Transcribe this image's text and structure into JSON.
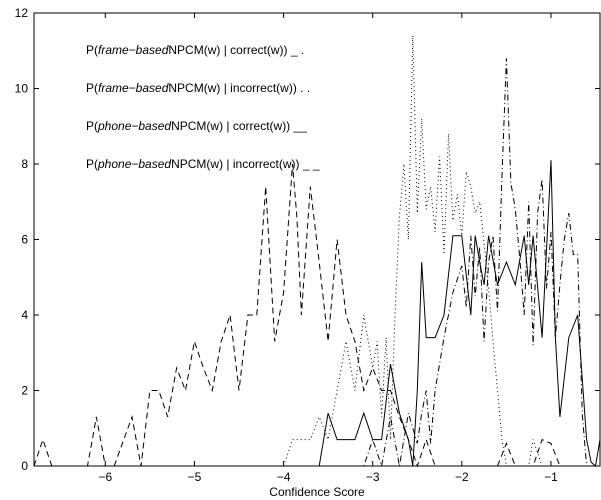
{
  "chart_data": {
    "type": "line",
    "title": "",
    "xlabel": "Confidence Score",
    "ylabel": "",
    "xlim": [
      -6.8,
      -0.45
    ],
    "ylim": [
      0,
      12
    ],
    "x_ticks": [
      -6,
      -5,
      -4,
      -3,
      -2,
      -1
    ],
    "y_ticks": [
      0,
      2,
      4,
      6,
      8,
      10,
      12
    ],
    "grid": false,
    "legend": {
      "placement": "top-left",
      "entries": [
        {
          "prefix": "P(",
          "italic": "frame−based",
          "suffix": "NPCM(w) | correct(w)) _ ."
        },
        {
          "prefix": "P(",
          "italic": "frame−based",
          "suffix": "NPCM(w) | incorrect(w)) . ."
        },
        {
          "prefix": "P(",
          "italic": "phone−based",
          "suffix": "NPCM(w) | correct(w)) __"
        },
        {
          "prefix": "P(",
          "italic": "phone−based",
          "suffix": "NPCM(w) | incorrect(w)) _ _"
        }
      ]
    },
    "series": [
      {
        "style": "dashdot",
        "x": [
          -3.2,
          -3.1,
          -3.0,
          -2.9,
          -2.8,
          -2.7,
          -2.6,
          -2.5,
          -2.45,
          -2.4,
          -2.35,
          -2.3,
          -2.2,
          -2.1,
          -2.0,
          -1.95,
          -1.9,
          -1.85,
          -1.8,
          -1.75,
          -1.7,
          -1.65,
          -1.6,
          -1.55,
          -1.5,
          -1.45,
          -1.4,
          -1.35,
          -1.3,
          -1.25,
          -1.2,
          -1.15,
          -1.1,
          -1.05,
          -1.0,
          -0.95,
          -0.9,
          -0.85,
          -0.8,
          -0.75,
          -0.7,
          -0.65,
          -0.6,
          -0.55
        ],
        "values": [
          0,
          0,
          0.7,
          0,
          1.3,
          0,
          1.4,
          0.6,
          1.4,
          2.0,
          0.6,
          2.0,
          3.4,
          4.6,
          5.3,
          4.2,
          6.1,
          4.5,
          5.8,
          3.3,
          5.4,
          6.1,
          4.1,
          7.7,
          10.8,
          7.5,
          6.8,
          5.5,
          4.0,
          7.0,
          3.2,
          6.7,
          7.6,
          4.7,
          6.2,
          3.4,
          4.8,
          6.0,
          6.7,
          5.6,
          5.6,
          1.4,
          0,
          0
        ]
      },
      {
        "style": "dotted",
        "x": [
          -4.0,
          -3.9,
          -3.8,
          -3.7,
          -3.6,
          -3.5,
          -3.4,
          -3.3,
          -3.2,
          -3.1,
          -3.0,
          -2.95,
          -2.9,
          -2.85,
          -2.8,
          -2.75,
          -2.7,
          -2.65,
          -2.6,
          -2.55,
          -2.5,
          -2.45,
          -2.4,
          -2.35,
          -2.3,
          -2.25,
          -2.2,
          -2.15,
          -2.1,
          -2.05,
          -2.0,
          -1.95,
          -1.9,
          -1.85,
          -1.8,
          -1.75,
          -1.7,
          -1.65,
          -1.6,
          -1.55,
          -1.5,
          -1.45,
          -1.4,
          -1.35,
          -1.3,
          -1.25,
          -1.2,
          -1.1,
          -1.0,
          -0.9,
          -0.8,
          -0.75,
          -0.7
        ],
        "values": [
          0,
          0.7,
          0.7,
          0.7,
          1.3,
          0.7,
          2.0,
          3.3,
          2.0,
          4.0,
          2.6,
          3.3,
          1.3,
          3.4,
          0.7,
          4.0,
          6.6,
          8.0,
          6.0,
          11.4,
          6.7,
          9.2,
          6.8,
          7.4,
          6.2,
          8.2,
          5.6,
          8.8,
          6.5,
          7.2,
          6.1,
          7.8,
          7.4,
          6.7,
          7.0,
          5.9,
          4.7,
          3.3,
          2.0,
          0.7,
          0,
          0,
          0,
          0,
          0,
          0,
          0.7,
          0,
          0,
          0,
          0,
          0,
          0
        ]
      },
      {
        "style": "solid",
        "x": [
          -3.6,
          -3.5,
          -3.4,
          -3.3,
          -3.2,
          -3.1,
          -3.0,
          -2.9,
          -2.8,
          -2.7,
          -2.6,
          -2.55,
          -2.5,
          -2.45,
          -2.4,
          -2.3,
          -2.2,
          -2.1,
          -2.0,
          -1.9,
          -1.85,
          -1.8,
          -1.75,
          -1.7,
          -1.6,
          -1.5,
          -1.4,
          -1.3,
          -1.25,
          -1.2,
          -1.1,
          -1.0,
          -0.95,
          -0.9,
          -0.8,
          -0.7,
          -0.6,
          -0.55,
          -0.5,
          -0.45
        ],
        "values": [
          0,
          1.4,
          0.7,
          0.7,
          0.7,
          1.4,
          0.7,
          0.7,
          2.7,
          1.4,
          0.7,
          0,
          2.0,
          5.4,
          3.4,
          3.4,
          4.0,
          6.1,
          6.1,
          4.0,
          6.1,
          5.4,
          4.8,
          6.1,
          4.8,
          5.4,
          4.8,
          6.1,
          4.8,
          6.1,
          3.4,
          8.1,
          3.4,
          1.3,
          3.4,
          4.0,
          0.7,
          0.1,
          0,
          0.7
        ]
      },
      {
        "style": "dashed",
        "x": [
          -6.8,
          -6.7,
          -6.6,
          -6.2,
          -6.1,
          -6.0,
          -5.9,
          -5.7,
          -5.6,
          -5.5,
          -5.4,
          -5.3,
          -5.2,
          -5.1,
          -5.0,
          -4.9,
          -4.8,
          -4.7,
          -4.6,
          -4.5,
          -4.4,
          -4.3,
          -4.2,
          -4.1,
          -4.0,
          -3.9,
          -3.85,
          -3.8,
          -3.7,
          -3.6,
          -3.5,
          -3.4,
          -3.3,
          -3.2,
          -3.1,
          -3.0,
          -2.9,
          -2.8,
          -2.7,
          -2.6,
          -2.5,
          -2.4,
          -2.3,
          -2.2,
          -2.1,
          -2.0,
          -1.9,
          -1.8,
          -1.7,
          -1.6,
          -1.5,
          -1.4,
          -1.3,
          -1.2,
          -1.1,
          -1.0,
          -0.9,
          -0.8,
          -0.7,
          -0.6,
          -0.5,
          -0.45
        ],
        "values": [
          0,
          0.7,
          0,
          0,
          1.3,
          0,
          0,
          1.3,
          0,
          2.0,
          2.0,
          1.3,
          2.6,
          2.0,
          3.3,
          2.6,
          2.0,
          3.3,
          4.0,
          2.0,
          4.0,
          4.0,
          7.4,
          3.3,
          4.6,
          8.0,
          6.6,
          4.0,
          7.4,
          5.4,
          3.3,
          6.0,
          4.0,
          3.3,
          2.0,
          2.6,
          2.0,
          2.0,
          1.3,
          0.7,
          0,
          0.7,
          0,
          0,
          0,
          0,
          0,
          0,
          0,
          0,
          0.6,
          0,
          0,
          0,
          0.7,
          0.6,
          0,
          0,
          0,
          0,
          0,
          0
        ]
      }
    ]
  }
}
